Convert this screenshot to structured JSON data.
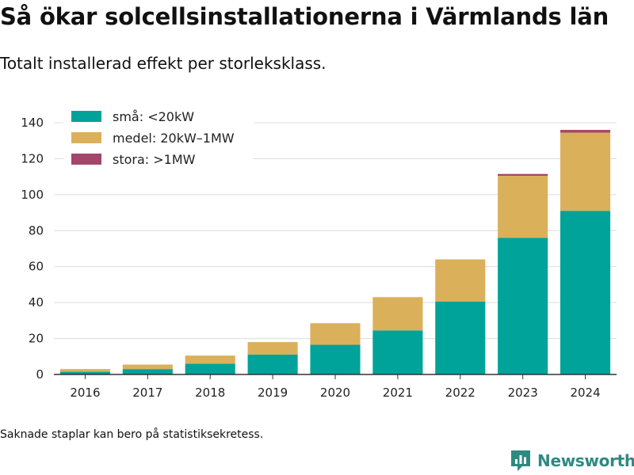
{
  "title": "Så ökar solcellsinstallationerna i Värmlands län",
  "subtitle": "Totalt installerad effekt per storleksklass.",
  "footnote": "Saknade staplar kan bero på statistiksekretess.",
  "brand": {
    "name": "Newsworthy",
    "icon": "chart-logo-icon",
    "color": "#2e8a80"
  },
  "chart_data": {
    "type": "bar",
    "stacked": true,
    "categories": [
      "2016",
      "2017",
      "2018",
      "2019",
      "2020",
      "2021",
      "2022",
      "2023",
      "2024"
    ],
    "series": [
      {
        "name": "små: <20kW",
        "color": "#00a399",
        "values": [
          1.5,
          3,
          6,
          11,
          16.5,
          24.5,
          40.5,
          76,
          91
        ]
      },
      {
        "name": "medel: 20kW–1MW",
        "color": "#dbb05a",
        "values": [
          1.5,
          2.5,
          4.5,
          7,
          12,
          18.5,
          23.5,
          34.5,
          43.5
        ]
      },
      {
        "name": "stora: >1MW",
        "color": "#a4456c",
        "values": [
          0,
          0,
          0,
          0,
          0,
          0,
          0,
          1,
          1.5
        ]
      }
    ],
    "ylim": [
      0,
      140
    ],
    "yticks": [
      0,
      20,
      40,
      60,
      80,
      100,
      120,
      140
    ],
    "xlabel": "",
    "ylabel": "",
    "grid": true,
    "legend": "top-left"
  }
}
